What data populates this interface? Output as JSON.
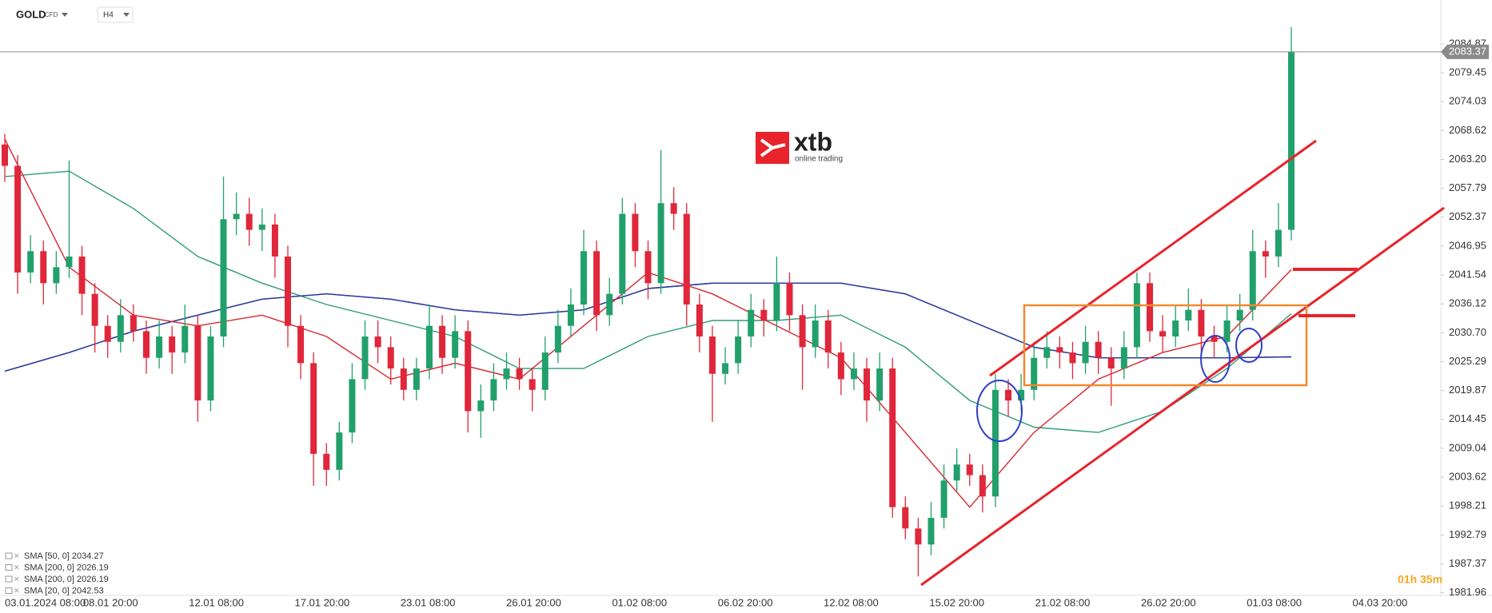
{
  "chart_data": {
    "type": "candlestick",
    "symbol": "GOLD",
    "symbol_type": "CFD",
    "timeframe": "H4",
    "logo": {
      "brand": "xtb",
      "tagline": "online trading"
    },
    "countdown": "01h 35m",
    "up_color": "#22a06b",
    "down_color": "#e0263a",
    "ylim": [
      1981.6,
      2091.3
    ],
    "yticks": [
      2084.87,
      2079.45,
      2074.03,
      2068.62,
      {
        "value": 2063.2,
        "label": "2063.20"
      },
      2057.79,
      2052.37,
      2046.95,
      2041.54,
      2036.12,
      {
        "value": 2030.7,
        "label": "2030.70"
      },
      2025.29,
      2019.87,
      2014.45,
      2009.04,
      2003.62,
      1998.21,
      1992.79,
      1987.37,
      1981.96
    ],
    "last_price": 2083.37,
    "x_labels": [
      "03.01.2024  08:00",
      "08.01  20:00",
      "12.01  08:00",
      "17.01  20:00",
      "23.01  08:00",
      "26.01  20:00",
      "01.02  08:00",
      "06.02  20:00",
      "12.02  08:00",
      "15.02  20:00",
      "21.02  08:00",
      "26.02  20:00",
      "01.03  08:00",
      "04.03  20:00"
    ],
    "candles": [
      [
        2066,
        2068,
        2059,
        2062
      ],
      [
        2062,
        2064,
        2038,
        2042
      ],
      [
        2042,
        2049,
        2040,
        2046
      ],
      [
        2046,
        2048,
        2036,
        2040
      ],
      [
        2040,
        2046,
        2038,
        2043
      ],
      [
        2043,
        2063,
        2041,
        2045
      ],
      [
        2045,
        2047,
        2034,
        2038
      ],
      [
        2038,
        2040,
        2027,
        2032
      ],
      [
        2032,
        2034,
        2026,
        2029
      ],
      [
        2029,
        2037,
        2027,
        2034
      ],
      [
        2034,
        2036,
        2029,
        2031
      ],
      [
        2031,
        2033,
        2023,
        2026
      ],
      [
        2026,
        2033,
        2024,
        2030
      ],
      [
        2030,
        2032,
        2023,
        2027
      ],
      [
        2027,
        2036,
        2025,
        2032
      ],
      [
        2032,
        2034,
        2014,
        2018
      ],
      [
        2018,
        2032,
        2016,
        2030
      ],
      [
        2030,
        2060,
        2028,
        2052
      ],
      [
        2052,
        2057,
        2049,
        2053
      ],
      [
        2053,
        2056,
        2047,
        2050
      ],
      [
        2050,
        2054,
        2046,
        2051
      ],
      [
        2051,
        2053,
        2041,
        2045
      ],
      [
        2045,
        2047,
        2028,
        2032
      ],
      [
        2032,
        2034,
        2022,
        2025
      ],
      [
        2025,
        2027,
        2002,
        2008
      ],
      [
        2008,
        2010,
        2002,
        2005
      ],
      [
        2005,
        2014,
        2003,
        2012
      ],
      [
        2012,
        2025,
        2010,
        2022
      ],
      [
        2022,
        2033,
        2020,
        2030
      ],
      [
        2030,
        2033,
        2025,
        2028
      ],
      [
        2028,
        2030,
        2021,
        2024
      ],
      [
        2024,
        2026,
        2018,
        2020
      ],
      [
        2020,
        2026,
        2018,
        2024
      ],
      [
        2024,
        2036,
        2022,
        2032
      ],
      [
        2032,
        2034,
        2023,
        2026
      ],
      [
        2026,
        2034,
        2024,
        2031
      ],
      [
        2031,
        2033,
        2012,
        2016
      ],
      [
        2016,
        2021,
        2011,
        2018
      ],
      [
        2018,
        2025,
        2016,
        2022
      ],
      [
        2022,
        2027,
        2020,
        2024
      ],
      [
        2024,
        2026,
        2020,
        2022
      ],
      [
        2022,
        2024,
        2016,
        2020
      ],
      [
        2020,
        2030,
        2018,
        2027
      ],
      [
        2027,
        2035,
        2025,
        2032
      ],
      [
        2032,
        2039,
        2030,
        2036
      ],
      [
        2036,
        2050,
        2034,
        2046
      ],
      [
        2046,
        2048,
        2031,
        2034
      ],
      [
        2034,
        2041,
        2032,
        2038
      ],
      [
        2038,
        2056,
        2036,
        2053
      ],
      [
        2053,
        2055,
        2043,
        2046
      ],
      [
        2046,
        2048,
        2037,
        2040
      ],
      [
        2040,
        2065,
        2038,
        2055
      ],
      [
        2055,
        2058,
        2050,
        2053
      ],
      [
        2053,
        2055,
        2032,
        2036
      ],
      [
        2036,
        2038,
        2027,
        2030
      ],
      [
        2030,
        2032,
        2014,
        2023
      ],
      [
        2023,
        2028,
        2021,
        2025
      ],
      [
        2025,
        2033,
        2023,
        2030
      ],
      [
        2030,
        2038,
        2028,
        2035
      ],
      [
        2035,
        2037,
        2030,
        2033
      ],
      [
        2033,
        2045,
        2031,
        2040
      ],
      [
        2040,
        2042,
        2031,
        2034
      ],
      [
        2034,
        2036,
        2020,
        2028
      ],
      [
        2028,
        2036,
        2026,
        2033
      ],
      [
        2033,
        2035,
        2024,
        2027
      ],
      [
        2027,
        2029,
        2019,
        2022
      ],
      [
        2022,
        2027,
        2020,
        2024
      ],
      [
        2024,
        2026,
        2014,
        2018
      ],
      [
        2018,
        2027,
        2016,
        2024
      ],
      [
        2024,
        2026,
        1996,
        1998
      ],
      [
        1998,
        2000,
        1992,
        1994
      ],
      [
        1994,
        1996,
        1985,
        1991
      ],
      [
        1991,
        1999,
        1989,
        1996
      ],
      [
        1996,
        2006,
        1994,
        2003
      ],
      [
        2003,
        2009,
        2001,
        2006
      ],
      [
        2006,
        2008,
        2002,
        2004
      ],
      [
        2004,
        2006,
        1997,
        2000
      ],
      [
        2000,
        2023,
        1998,
        2020
      ],
      [
        2020,
        2022,
        2015,
        2018
      ],
      [
        2018,
        2023,
        2016,
        2020
      ],
      [
        2020,
        2029,
        2018,
        2026
      ],
      [
        2026,
        2031,
        2024,
        2028
      ],
      [
        2028,
        2030,
        2024,
        2027
      ],
      [
        2027,
        2029,
        2022,
        2025
      ],
      [
        2025,
        2032,
        2023,
        2029
      ],
      [
        2029,
        2031,
        2023,
        2026
      ],
      [
        2026,
        2028,
        2017,
        2024
      ],
      [
        2024,
        2031,
        2022,
        2028
      ],
      [
        2028,
        2042,
        2026,
        2040
      ],
      [
        2040,
        2042,
        2029,
        2031
      ],
      [
        2031,
        2034,
        2027,
        2030
      ],
      [
        2030,
        2036,
        2028,
        2033
      ],
      [
        2033,
        2039,
        2031,
        2035
      ],
      [
        2035,
        2037,
        2027,
        2030
      ],
      [
        2030,
        2032,
        2026,
        2029
      ],
      [
        2029,
        2036,
        2027,
        2033
      ],
      [
        2033,
        2038,
        2031,
        2035
      ],
      [
        2035,
        2050,
        2033,
        2046
      ],
      [
        2046,
        2048,
        2041,
        2045
      ],
      [
        2045,
        2055,
        2043,
        2050
      ],
      [
        2050,
        2088,
        2048,
        2083.37
      ]
    ],
    "indicators": [
      {
        "name": "SMA [50, 0]  2034.27",
        "color": "#2e9c77",
        "x": [
          0,
          5,
          10,
          15,
          20,
          25,
          30,
          35,
          40,
          45,
          50,
          55,
          60,
          65,
          70,
          75,
          80,
          85,
          90,
          95,
          100
        ],
        "values": [
          2060,
          2061,
          2054,
          2045,
          2040,
          2036,
          2033,
          2030,
          2024,
          2024,
          2030,
          2033,
          2033,
          2034,
          2028,
          2018,
          2013,
          2012,
          2016,
          2024,
          2034.27
        ]
      },
      {
        "name": "SMA [200, 0]  2026.19",
        "color": "#2b3a9c",
        "x": [
          0,
          5,
          10,
          15,
          20,
          25,
          30,
          35,
          40,
          45,
          50,
          55,
          60,
          65,
          70,
          75,
          80,
          85,
          90,
          95,
          100
        ],
        "values": [
          2023.5,
          2027,
          2031,
          2034,
          2037,
          2038,
          2037,
          2035,
          2034,
          2035,
          2039,
          2040,
          2040,
          2040,
          2038,
          2033,
          2028,
          2026,
          2026,
          2026,
          2026.19
        ]
      },
      {
        "name": "SMA [200, 0]  2026.19",
        "color": "#2b3a9c",
        "x": [
          0,
          5,
          10,
          15,
          20,
          25,
          30,
          35,
          40,
          45,
          50,
          55,
          60,
          65,
          70,
          75,
          80,
          85,
          90,
          95,
          100
        ],
        "values": [
          2023.5,
          2027,
          2031,
          2034,
          2037,
          2038,
          2037,
          2035,
          2034,
          2035,
          2039,
          2040,
          2040,
          2040,
          2038,
          2033,
          2028,
          2026,
          2026,
          2026,
          2026.19
        ]
      },
      {
        "name": "SMA [20, 0]  2042.53",
        "color": "#d8262c",
        "x": [
          0,
          5,
          10,
          15,
          20,
          25,
          30,
          35,
          40,
          45,
          50,
          55,
          60,
          65,
          70,
          75,
          80,
          85,
          90,
          95,
          100
        ],
        "values": [
          2067,
          2043,
          2034,
          2032,
          2034,
          2030,
          2022,
          2025,
          2022,
          2032,
          2042,
          2038,
          2032,
          2026,
          2012,
          1998,
          2012,
          2022,
          2027,
          2030,
          2042.53
        ]
      }
    ]
  }
}
